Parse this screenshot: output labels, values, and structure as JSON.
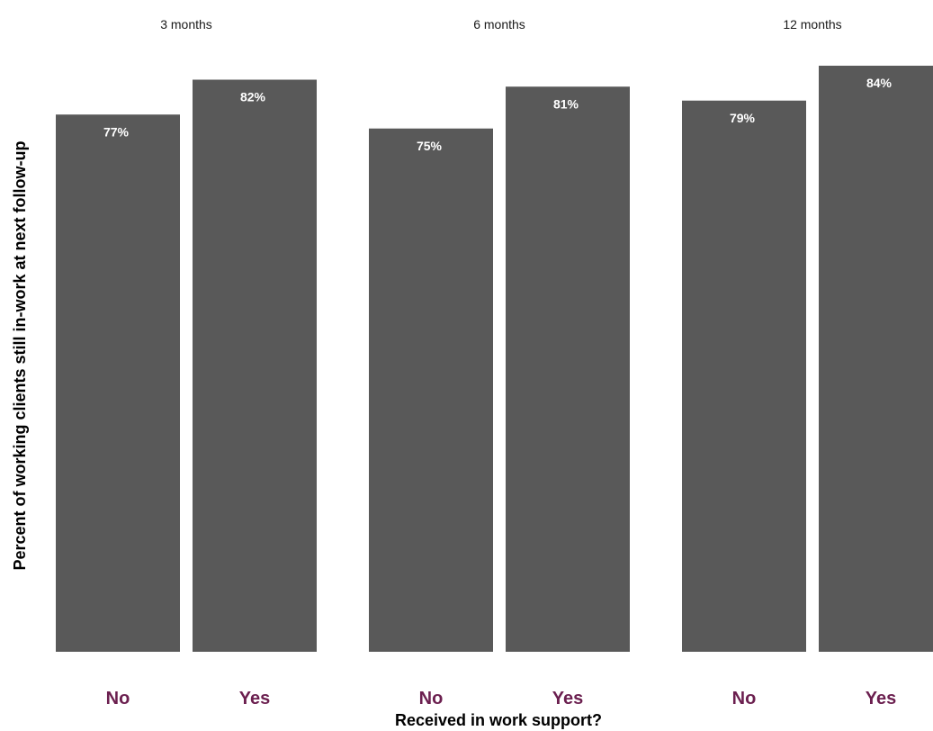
{
  "chart_data": {
    "type": "bar",
    "facets": [
      "3 months",
      "6 months",
      "12 months"
    ],
    "categories": [
      "No",
      "Yes"
    ],
    "values": [
      [
        77,
        82
      ],
      [
        75,
        81
      ],
      [
        79,
        84
      ]
    ],
    "value_labels": [
      [
        "77%",
        "82%"
      ],
      [
        "75%",
        "81%"
      ],
      [
        "79%",
        "84%"
      ]
    ],
    "xlabel": "Received in work support?",
    "ylabel": "Percent of working clients still in-work at next follow-up",
    "ylim": [
      0,
      84
    ],
    "grid": false,
    "legend": "none"
  },
  "colors": {
    "bar": "#595959",
    "category_label": "#6b1f4f",
    "background": "#ffffff"
  }
}
